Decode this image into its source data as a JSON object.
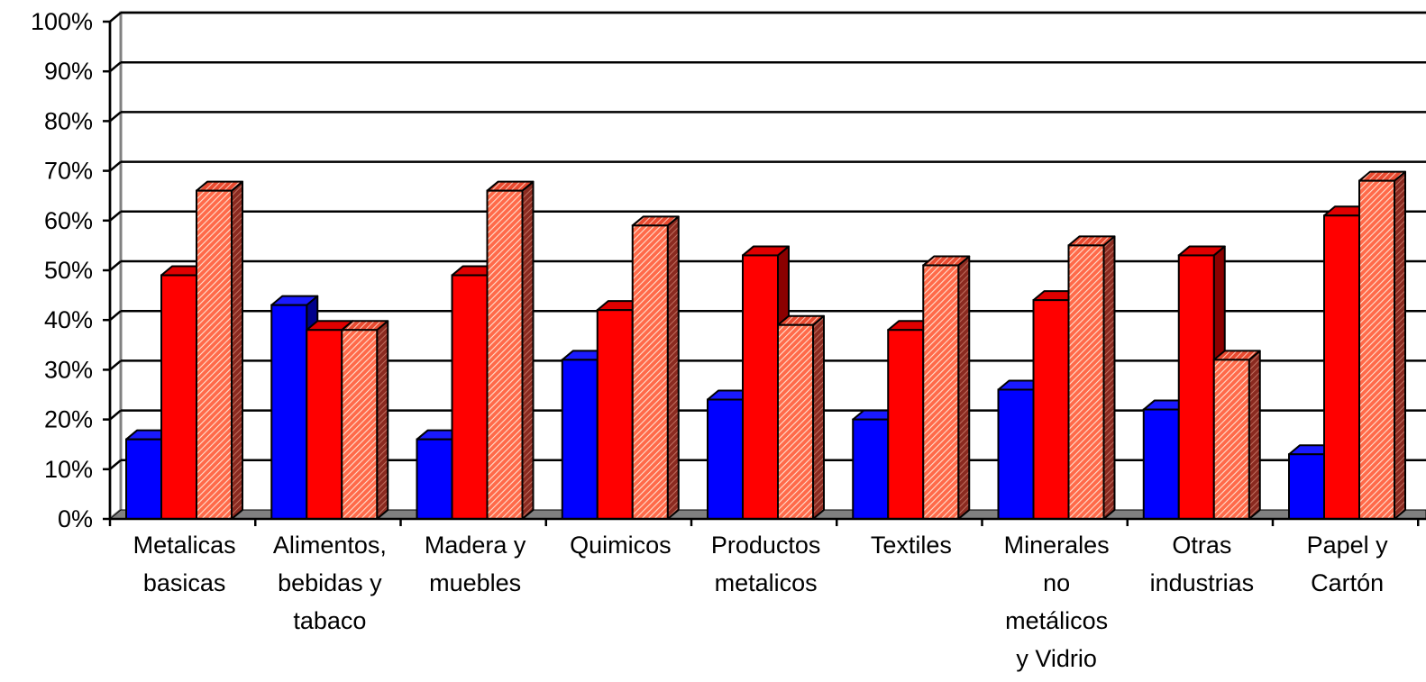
{
  "chart_data": {
    "type": "bar",
    "title": "",
    "xlabel": "",
    "ylabel": "",
    "ylim": [
      0,
      100
    ],
    "y_ticks": [
      "0%",
      "10%",
      "20%",
      "30%",
      "40%",
      "50%",
      "60%",
      "70%",
      "80%",
      "90%",
      "100%"
    ],
    "grid": true,
    "categories": [
      [
        "Metalicas",
        "basicas"
      ],
      [
        "Alimentos,",
        "bebidas y",
        "tabaco"
      ],
      [
        "Madera y",
        "muebles"
      ],
      [
        "Quimicos"
      ],
      [
        "Productos",
        "metalicos"
      ],
      [
        "Textiles"
      ],
      [
        "Minerales",
        "no",
        "metálicos",
        "y Vidrio"
      ],
      [
        "Otras",
        "industrias"
      ],
      [
        "Papel y",
        "Cartón"
      ]
    ],
    "series": [
      {
        "values": [
          16,
          43,
          16,
          32,
          24,
          20,
          26,
          22,
          13
        ]
      },
      {
        "values": [
          49,
          38,
          49,
          42,
          53,
          38,
          44,
          53,
          61
        ]
      },
      {
        "values": [
          66,
          38,
          66,
          59,
          39,
          51,
          55,
          32,
          68
        ]
      }
    ],
    "colors": {
      "series1": "#0000ff",
      "series2": "#ff0000",
      "series3_fill": "#ff6040",
      "series3_hatch": "#ffd8c8",
      "floor": "#808080",
      "grid": "#000000"
    }
  }
}
